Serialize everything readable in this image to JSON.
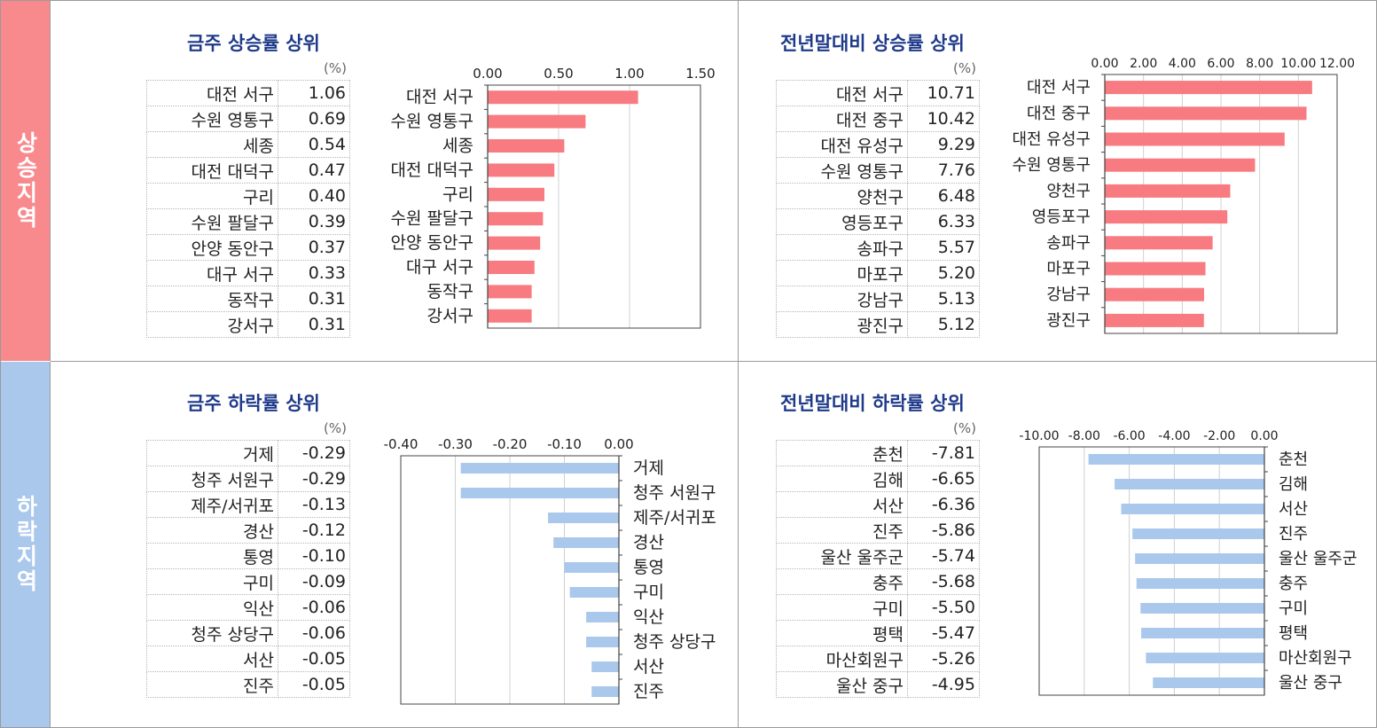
{
  "sections": {
    "rise_label": "상승지역",
    "fall_label": "하락지역"
  },
  "panels": [
    {
      "id": "weekly-rise",
      "title": "금주 상승률 상위",
      "unit": "(%)",
      "rows": [
        {
          "name": "대전 서구",
          "value": "1.06"
        },
        {
          "name": "수원 영통구",
          "value": "0.69"
        },
        {
          "name": "세종",
          "value": "0.54"
        },
        {
          "name": "대전 대덕구",
          "value": "0.47"
        },
        {
          "name": "구리",
          "value": "0.40"
        },
        {
          "name": "수원 팔달구",
          "value": "0.39"
        },
        {
          "name": "안양 동안구",
          "value": "0.37"
        },
        {
          "name": "대구 서구",
          "value": "0.33"
        },
        {
          "name": "동작구",
          "value": "0.31"
        },
        {
          "name": "강서구",
          "value": "0.31"
        }
      ]
    },
    {
      "id": "ytd-rise",
      "title": "전년말대비 상승률 상위",
      "unit": "(%)",
      "rows": [
        {
          "name": "대전 서구",
          "value": "10.71"
        },
        {
          "name": "대전 중구",
          "value": "10.42"
        },
        {
          "name": "대전 유성구",
          "value": "9.29"
        },
        {
          "name": "수원 영통구",
          "value": "7.76"
        },
        {
          "name": "양천구",
          "value": "6.48"
        },
        {
          "name": "영등포구",
          "value": "6.33"
        },
        {
          "name": "송파구",
          "value": "5.57"
        },
        {
          "name": "마포구",
          "value": "5.20"
        },
        {
          "name": "강남구",
          "value": "5.13"
        },
        {
          "name": "광진구",
          "value": "5.12"
        }
      ]
    },
    {
      "id": "weekly-fall",
      "title": "금주 하락률 상위",
      "unit": "(%)",
      "rows": [
        {
          "name": "거제",
          "value": "-0.29"
        },
        {
          "name": "청주 서원구",
          "value": "-0.29"
        },
        {
          "name": "제주/서귀포",
          "value": "-0.13"
        },
        {
          "name": "경산",
          "value": "-0.12"
        },
        {
          "name": "통영",
          "value": "-0.10"
        },
        {
          "name": "구미",
          "value": "-0.09"
        },
        {
          "name": "익산",
          "value": "-0.06"
        },
        {
          "name": "청주 상당구",
          "value": "-0.06"
        },
        {
          "name": "서산",
          "value": "-0.05"
        },
        {
          "name": "진주",
          "value": "-0.05"
        }
      ]
    },
    {
      "id": "ytd-fall",
      "title": "전년말대비 하락률 상위",
      "unit": "(%)",
      "rows": [
        {
          "name": "춘천",
          "value": "-7.81"
        },
        {
          "name": "김해",
          "value": "-6.65"
        },
        {
          "name": "서산",
          "value": "-6.36"
        },
        {
          "name": "진주",
          "value": "-5.86"
        },
        {
          "name": "울산 울주군",
          "value": "-5.74"
        },
        {
          "name": "충주",
          "value": "-5.68"
        },
        {
          "name": "구미",
          "value": "-5.50"
        },
        {
          "name": "평택",
          "value": "-5.47"
        },
        {
          "name": "마산회원구",
          "value": "-5.26"
        },
        {
          "name": "울산 중구",
          "value": "-4.95"
        }
      ]
    }
  ],
  "chart_data": [
    {
      "type": "bar",
      "orientation": "horizontal",
      "title": "금주 상승률 상위",
      "categories": [
        "대전 서구",
        "수원 영통구",
        "세종",
        "대전 대덕구",
        "구리",
        "수원 팔달구",
        "안양 동안구",
        "대구 서구",
        "동작구",
        "강서구"
      ],
      "values": [
        1.06,
        0.69,
        0.54,
        0.47,
        0.4,
        0.39,
        0.37,
        0.33,
        0.31,
        0.31
      ],
      "xlim": [
        0,
        1.5
      ],
      "ticks": [
        "0.00",
        "0.50",
        "1.00",
        "1.50"
      ],
      "tick_values": [
        0,
        0.5,
        1.0,
        1.5
      ],
      "color": "#f77b80",
      "grid": true
    },
    {
      "type": "bar",
      "orientation": "horizontal",
      "title": "전년말대비 상승률 상위",
      "categories": [
        "대전 서구",
        "대전 중구",
        "대전 유성구",
        "수원 영통구",
        "양천구",
        "영등포구",
        "송파구",
        "마포구",
        "강남구",
        "광진구"
      ],
      "values": [
        10.71,
        10.42,
        9.29,
        7.76,
        6.48,
        6.33,
        5.57,
        5.2,
        5.13,
        5.12
      ],
      "xlim": [
        0,
        12
      ],
      "ticks": [
        "0.00",
        "2.00",
        "4.00",
        "6.00",
        "8.00",
        "10.00",
        "12.00"
      ],
      "tick_values": [
        0,
        2,
        4,
        6,
        8,
        10,
        12
      ],
      "color": "#f77b80",
      "grid": true
    },
    {
      "type": "bar",
      "orientation": "horizontal",
      "title": "금주 하락률 상위",
      "categories": [
        "거제",
        "청주 서원구",
        "제주/서귀포",
        "경산",
        "통영",
        "구미",
        "익산",
        "청주 상당구",
        "서산",
        "진주"
      ],
      "values": [
        -0.29,
        -0.29,
        -0.13,
        -0.12,
        -0.1,
        -0.09,
        -0.06,
        -0.06,
        -0.05,
        -0.05
      ],
      "xlim": [
        -0.4,
        0
      ],
      "ticks": [
        "-0.40",
        "-0.30",
        "-0.20",
        "-0.10",
        "0.00"
      ],
      "tick_values": [
        -0.4,
        -0.3,
        -0.2,
        -0.1,
        0
      ],
      "color": "#a9c8ec",
      "grid": true
    },
    {
      "type": "bar",
      "orientation": "horizontal",
      "title": "전년말대비 하락률 상위",
      "categories": [
        "춘천",
        "김해",
        "서산",
        "진주",
        "울산 울주군",
        "충주",
        "구미",
        "평택",
        "마산회원구",
        "울산 중구"
      ],
      "values": [
        -7.81,
        -6.65,
        -6.36,
        -5.86,
        -5.74,
        -5.68,
        -5.5,
        -5.47,
        -5.26,
        -4.95
      ],
      "xlim": [
        -10,
        0
      ],
      "ticks": [
        "-10.00",
        "-8.00",
        "-6.00",
        "-4.00",
        "-2.00",
        "0.00"
      ],
      "tick_values": [
        -10,
        -8,
        -6,
        -4,
        -2,
        0
      ],
      "color": "#a9c8ec",
      "grid": true
    }
  ]
}
